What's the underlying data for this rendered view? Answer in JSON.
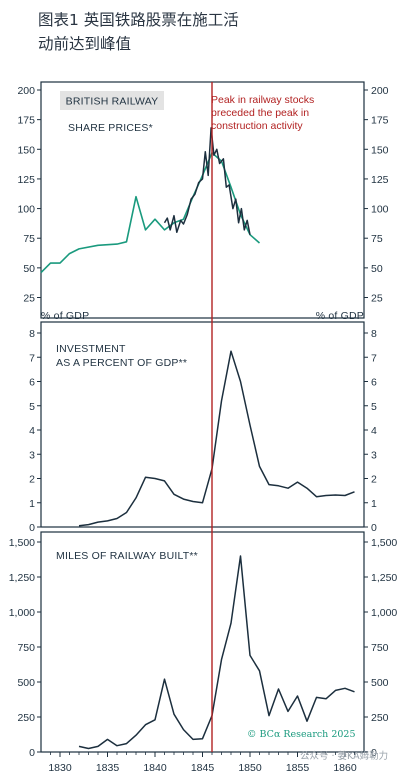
{
  "page_title_line1": "图表1 英国铁路股票在施工活",
  "page_title_line2": "动前达到峰值",
  "source": "© BCα Research 2025",
  "watermark": "公众号 · 姜KA姆勒力",
  "colors": {
    "dark": "#1c2f3e",
    "green": "#1a9a7e",
    "red": "#b22222",
    "box": "#e3e3e3"
  },
  "chart_data": [
    {
      "type": "line",
      "box_label": "BRITISH RAILWAY",
      "title": "SHARE PRICES*",
      "xlim": [
        1828,
        1862
      ],
      "ylim": [
        20,
        205
      ],
      "yticks": [
        25,
        50,
        75,
        100,
        125,
        150,
        175,
        200
      ],
      "left_ylabel": "% of GDP",
      "right_ylabel": "% of GDP",
      "annotation": [
        "Peak in railway stocks",
        "preceded the peak in",
        "construction activity"
      ],
      "series": [
        {
          "color": "green",
          "x": [
            1828,
            1829,
            1830,
            1831,
            1832,
            1834,
            1836,
            1837,
            1838,
            1839,
            1840,
            1841,
            1842,
            1843,
            1844,
            1845,
            1846,
            1847,
            1848,
            1849,
            1850,
            1851
          ],
          "y": [
            46,
            54,
            54,
            62,
            66,
            69,
            70,
            72,
            110,
            82,
            91,
            82,
            88,
            91,
            110,
            128,
            147,
            140,
            118,
            95,
            78,
            71
          ]
        },
        {
          "color": "dark",
          "x": [
            1841,
            1841.3,
            1841.6,
            1842,
            1842.3,
            1842.7,
            1843,
            1843.4,
            1843.8,
            1844.2,
            1844.6,
            1845,
            1845.3,
            1845.6,
            1845.9,
            1846.2,
            1846.5,
            1846.8,
            1847.2,
            1847.5,
            1847.8,
            1848.2,
            1848.5,
            1848.8,
            1849.1,
            1849.4,
            1849.7,
            1850
          ],
          "y": [
            88,
            92,
            82,
            94,
            80,
            90,
            87,
            95,
            108,
            112,
            122,
            125,
            148,
            128,
            168,
            145,
            150,
            138,
            142,
            118,
            120,
            100,
            108,
            88,
            100,
            82,
            90,
            78
          ]
        }
      ]
    },
    {
      "type": "line",
      "title": "INVESTMENT",
      "subtitle": "AS A PERCENT OF GDP**",
      "xlim": [
        1828,
        1862
      ],
      "ylim": [
        0,
        8.3
      ],
      "yticks": [
        0,
        1,
        2,
        3,
        4,
        5,
        6,
        7,
        8
      ],
      "series": [
        {
          "color": "dark",
          "x": [
            1832,
            1833,
            1834,
            1835,
            1836,
            1837,
            1838,
            1839,
            1840,
            1841,
            1842,
            1843,
            1844,
            1845,
            1846,
            1847,
            1848,
            1849,
            1850,
            1851,
            1852,
            1853,
            1854,
            1855,
            1856,
            1857,
            1858,
            1859,
            1860,
            1861
          ],
          "y": [
            0.05,
            0.1,
            0.2,
            0.25,
            0.35,
            0.6,
            1.2,
            2.05,
            2.0,
            1.9,
            1.35,
            1.15,
            1.05,
            1.0,
            2.4,
            5.2,
            7.25,
            6.0,
            4.2,
            2.5,
            1.75,
            1.7,
            1.6,
            1.85,
            1.6,
            1.25,
            1.3,
            1.32,
            1.3,
            1.45
          ]
        }
      ]
    },
    {
      "type": "line",
      "title": "MILES OF RAILWAY BUILT**",
      "xlim": [
        1828,
        1862
      ],
      "ylim": [
        0,
        1550
      ],
      "yticks": [
        0,
        250,
        500,
        750,
        1000,
        1250,
        1500
      ],
      "ytick_labels": [
        "0",
        "250",
        "500",
        "750",
        "1,000",
        "1,250",
        "1,500"
      ],
      "xticks": [
        1830,
        1835,
        1840,
        1845,
        1850,
        1855,
        1860
      ],
      "series": [
        {
          "color": "dark",
          "x": [
            1832,
            1833,
            1834,
            1835,
            1836,
            1837,
            1838,
            1839,
            1840,
            1841,
            1842,
            1843,
            1844,
            1845,
            1846,
            1847,
            1848,
            1849,
            1850,
            1851,
            1852,
            1853,
            1854,
            1855,
            1856,
            1857,
            1858,
            1859,
            1860,
            1861
          ],
          "y": [
            40,
            25,
            40,
            90,
            45,
            60,
            120,
            195,
            230,
            520,
            270,
            160,
            90,
            95,
            260,
            660,
            920,
            1400,
            690,
            580,
            260,
            450,
            290,
            400,
            220,
            390,
            380,
            440,
            455,
            430
          ]
        }
      ]
    }
  ]
}
